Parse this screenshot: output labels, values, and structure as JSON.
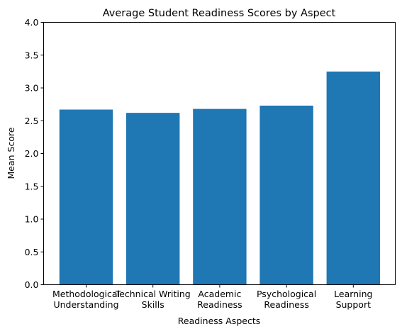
{
  "chart_data": {
    "type": "bar",
    "title": "Average Student Readiness Scores by Aspect",
    "xlabel": "Readiness Aspects",
    "ylabel": "Mean Score",
    "categories": [
      [
        "Methodological",
        "Understanding"
      ],
      [
        "Technical Writing",
        "Skills"
      ],
      [
        "Academic",
        "Readiness"
      ],
      [
        "Psychological",
        "Readiness"
      ],
      [
        "Learning",
        "Support"
      ]
    ],
    "values": [
      2.67,
      2.62,
      2.68,
      2.73,
      3.25
    ],
    "ylim": [
      0,
      4
    ],
    "yticks": [
      "0.0",
      "0.5",
      "1.0",
      "1.5",
      "2.0",
      "2.5",
      "3.0",
      "3.5",
      "4.0"
    ],
    "bar_color": "#1f77b4",
    "grid": false,
    "legend": "none"
  }
}
